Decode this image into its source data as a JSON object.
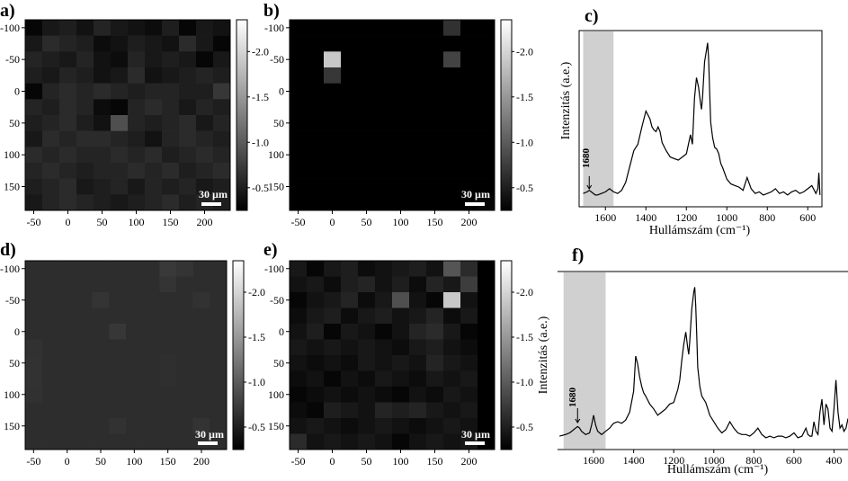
{
  "panel_labels": {
    "a": "a)",
    "b": "b)",
    "c": "c)",
    "d": "d)",
    "e": "e)",
    "f": "f)"
  },
  "scale_bar_label": "30 µm",
  "colorbar_ticks": [
    "2.0",
    "1.5",
    "1.0",
    "0.5"
  ],
  "map_x_ticks": [
    "-50",
    "0",
    "50",
    "100",
    "150",
    "200"
  ],
  "map_y_ticks": [
    "-100",
    "-50",
    "0",
    "50",
    "100",
    "150"
  ],
  "chart_data": [
    {
      "type": "heatmap",
      "panel": "a",
      "x": [
        -50,
        -25,
        0,
        25,
        50,
        75,
        100,
        125,
        150,
        175,
        200,
        225
      ],
      "y": [
        -100,
        -75,
        -50,
        -25,
        0,
        25,
        50,
        75,
        100,
        125,
        150,
        175
      ],
      "colorbar_range": [
        0.25,
        2.35
      ],
      "values": [
        [
          0.3,
          0.45,
          0.5,
          0.4,
          0.55,
          0.45,
          0.4,
          0.35,
          0.5,
          0.3,
          0.45,
          0.4
        ],
        [
          0.45,
          0.6,
          0.55,
          0.5,
          0.35,
          0.4,
          0.5,
          0.45,
          0.4,
          0.6,
          0.45,
          0.3
        ],
        [
          0.55,
          0.5,
          0.45,
          0.55,
          0.4,
          0.35,
          0.55,
          0.45,
          0.5,
          0.45,
          0.3,
          0.45
        ],
        [
          0.5,
          0.45,
          0.55,
          0.5,
          0.4,
          0.45,
          0.6,
          0.4,
          0.45,
          0.5,
          0.55,
          0.5
        ],
        [
          0.3,
          0.55,
          0.6,
          0.55,
          0.6,
          0.55,
          0.5,
          0.55,
          0.55,
          0.5,
          0.5,
          0.7
        ],
        [
          0.55,
          0.5,
          0.6,
          0.55,
          0.35,
          0.3,
          0.55,
          0.6,
          0.55,
          0.45,
          0.55,
          0.5
        ],
        [
          0.5,
          0.55,
          0.6,
          0.5,
          0.4,
          0.9,
          0.55,
          0.5,
          0.55,
          0.6,
          0.45,
          0.55
        ],
        [
          0.45,
          0.6,
          0.55,
          0.6,
          0.6,
          0.55,
          0.5,
          0.4,
          0.55,
          0.6,
          0.55,
          0.5
        ],
        [
          0.6,
          0.55,
          0.6,
          0.55,
          0.55,
          0.6,
          0.55,
          0.6,
          0.5,
          0.55,
          0.6,
          0.55
        ],
        [
          0.55,
          0.6,
          0.55,
          0.5,
          0.55,
          0.55,
          0.6,
          0.55,
          0.6,
          0.5,
          0.55,
          0.6
        ],
        [
          0.5,
          0.55,
          0.6,
          0.45,
          0.5,
          0.55,
          0.45,
          0.55,
          0.5,
          0.55,
          0.45,
          0.5
        ],
        [
          0.45,
          0.55,
          0.6,
          0.55,
          0.5,
          0.45,
          0.5,
          0.55,
          0.6,
          0.5,
          0.55,
          0.5
        ]
      ]
    },
    {
      "type": "heatmap",
      "panel": "b",
      "x": [
        -50,
        -25,
        0,
        25,
        50,
        75,
        100,
        125,
        150,
        175,
        200,
        225
      ],
      "y": [
        -100,
        -75,
        -50,
        -25,
        0,
        25,
        50,
        75,
        100,
        125,
        150,
        175
      ],
      "colorbar_range": [
        0.25,
        2.35
      ],
      "values": [
        [
          0.25,
          0.25,
          0.25,
          0.25,
          0.25,
          0.25,
          0.25,
          0.25,
          0.25,
          0.65,
          0.25,
          0.25
        ],
        [
          0.25,
          0.25,
          0.25,
          0.25,
          0.25,
          0.25,
          0.25,
          0.25,
          0.25,
          0.25,
          0.25,
          0.25
        ],
        [
          0.25,
          0.25,
          1.9,
          0.25,
          0.25,
          0.25,
          0.25,
          0.25,
          0.25,
          0.8,
          0.25,
          0.25
        ],
        [
          0.25,
          0.25,
          0.7,
          0.25,
          0.25,
          0.25,
          0.25,
          0.25,
          0.25,
          0.25,
          0.25,
          0.25
        ],
        [
          0.25,
          0.25,
          0.25,
          0.25,
          0.25,
          0.25,
          0.25,
          0.25,
          0.25,
          0.25,
          0.25,
          0.25
        ],
        [
          0.25,
          0.25,
          0.25,
          0.25,
          0.25,
          0.25,
          0.25,
          0.25,
          0.25,
          0.25,
          0.25,
          0.25
        ],
        [
          0.25,
          0.25,
          0.25,
          0.25,
          0.25,
          0.25,
          0.25,
          0.25,
          0.25,
          0.25,
          0.25,
          0.25
        ],
        [
          0.25,
          0.25,
          0.25,
          0.25,
          0.25,
          0.25,
          0.25,
          0.25,
          0.25,
          0.25,
          0.25,
          0.25
        ],
        [
          0.25,
          0.25,
          0.25,
          0.25,
          0.25,
          0.25,
          0.25,
          0.25,
          0.25,
          0.25,
          0.25,
          0.25
        ],
        [
          0.25,
          0.25,
          0.25,
          0.25,
          0.25,
          0.25,
          0.25,
          0.25,
          0.25,
          0.25,
          0.25,
          0.25
        ],
        [
          0.25,
          0.25,
          0.25,
          0.25,
          0.25,
          0.25,
          0.25,
          0.25,
          0.25,
          0.25,
          0.25,
          0.25
        ],
        [
          0.25,
          0.25,
          0.25,
          0.25,
          0.25,
          0.25,
          0.25,
          0.25,
          0.25,
          0.25,
          0.25,
          0.3
        ]
      ]
    },
    {
      "type": "line",
      "panel": "c",
      "xlabel": "Hullámszám (cm⁻¹)",
      "ylabel": "Intenzitás (a.e.)",
      "xlim": [
        1730,
        530
      ],
      "ylim": [
        0,
        1
      ],
      "x_ticks": [
        1600,
        1400,
        1200,
        1000,
        800,
        600
      ],
      "shaded_region": [
        1710,
        1560
      ],
      "annotation": {
        "text": "1680",
        "x": 1680
      },
      "x": [
        1710,
        1690,
        1680,
        1670,
        1650,
        1640,
        1620,
        1600,
        1580,
        1560,
        1540,
        1520,
        1500,
        1480,
        1460,
        1440,
        1420,
        1400,
        1380,
        1370,
        1360,
        1350,
        1340,
        1330,
        1320,
        1300,
        1280,
        1260,
        1240,
        1220,
        1200,
        1180,
        1170,
        1160,
        1150,
        1140,
        1130,
        1125,
        1120,
        1110,
        1100,
        1095,
        1090,
        1085,
        1080,
        1070,
        1060,
        1050,
        1040,
        1030,
        1020,
        1000,
        980,
        960,
        940,
        920,
        900,
        880,
        860,
        840,
        820,
        800,
        780,
        760,
        740,
        720,
        700,
        680,
        660,
        640,
        620,
        600,
        580,
        560,
        550,
        545,
        540
      ],
      "y": [
        0.05,
        0.06,
        0.07,
        0.06,
        0.04,
        0.04,
        0.05,
        0.06,
        0.08,
        0.06,
        0.05,
        0.07,
        0.12,
        0.22,
        0.32,
        0.36,
        0.47,
        0.57,
        0.52,
        0.47,
        0.45,
        0.44,
        0.47,
        0.44,
        0.37,
        0.32,
        0.28,
        0.27,
        0.26,
        0.28,
        0.3,
        0.42,
        0.36,
        0.65,
        0.78,
        0.72,
        0.62,
        0.58,
        0.66,
        0.88,
        0.96,
        1.0,
        0.9,
        0.7,
        0.5,
        0.4,
        0.34,
        0.33,
        0.3,
        0.24,
        0.21,
        0.14,
        0.11,
        0.1,
        0.09,
        0.07,
        0.15,
        0.08,
        0.05,
        0.06,
        0.04,
        0.05,
        0.06,
        0.08,
        0.05,
        0.06,
        0.04,
        0.06,
        0.07,
        0.05,
        0.06,
        0.08,
        0.1,
        0.05,
        0.08,
        0.18,
        0.04
      ]
    },
    {
      "type": "heatmap",
      "panel": "d",
      "x": [
        -50,
        -25,
        0,
        25,
        50,
        75,
        100,
        125,
        150,
        175,
        200,
        225
      ],
      "y": [
        -100,
        -75,
        -50,
        -25,
        0,
        25,
        50,
        75,
        100,
        125,
        150,
        175
      ],
      "colorbar_range": [
        0.25,
        2.35
      ],
      "values": [
        [
          0.62,
          0.62,
          0.62,
          0.62,
          0.62,
          0.62,
          0.62,
          0.62,
          0.72,
          0.68,
          0.62,
          0.62
        ],
        [
          0.62,
          0.62,
          0.62,
          0.62,
          0.62,
          0.62,
          0.62,
          0.62,
          0.68,
          0.62,
          0.62,
          0.62
        ],
        [
          0.62,
          0.62,
          0.62,
          0.62,
          0.68,
          0.62,
          0.62,
          0.62,
          0.62,
          0.62,
          0.66,
          0.62
        ],
        [
          0.62,
          0.62,
          0.62,
          0.62,
          0.62,
          0.62,
          0.62,
          0.62,
          0.62,
          0.62,
          0.62,
          0.62
        ],
        [
          0.62,
          0.62,
          0.62,
          0.62,
          0.62,
          0.7,
          0.62,
          0.62,
          0.62,
          0.62,
          0.62,
          0.62
        ],
        [
          0.65,
          0.62,
          0.62,
          0.62,
          0.62,
          0.62,
          0.62,
          0.62,
          0.62,
          0.62,
          0.62,
          0.62
        ],
        [
          0.66,
          0.62,
          0.62,
          0.62,
          0.62,
          0.62,
          0.62,
          0.62,
          0.64,
          0.62,
          0.62,
          0.62
        ],
        [
          0.66,
          0.62,
          0.62,
          0.62,
          0.62,
          0.62,
          0.62,
          0.62,
          0.64,
          0.62,
          0.62,
          0.62
        ],
        [
          0.65,
          0.62,
          0.62,
          0.62,
          0.62,
          0.62,
          0.62,
          0.62,
          0.62,
          0.62,
          0.62,
          0.62
        ],
        [
          0.62,
          0.62,
          0.62,
          0.62,
          0.62,
          0.62,
          0.62,
          0.62,
          0.62,
          0.62,
          0.62,
          0.62
        ],
        [
          0.62,
          0.62,
          0.62,
          0.62,
          0.62,
          0.66,
          0.62,
          0.62,
          0.62,
          0.62,
          0.67,
          0.62
        ],
        [
          0.62,
          0.62,
          0.62,
          0.62,
          0.62,
          0.62,
          0.62,
          0.62,
          0.62,
          0.62,
          0.62,
          0.62
        ]
      ]
    },
    {
      "type": "heatmap",
      "panel": "e",
      "x": [
        -50,
        -25,
        0,
        25,
        50,
        75,
        100,
        125,
        150,
        175,
        200,
        225
      ],
      "y": [
        -100,
        -75,
        -50,
        -25,
        0,
        25,
        50,
        75,
        100,
        125,
        150,
        175
      ],
      "colorbar_range": [
        0.25,
        2.35
      ],
      "values": [
        [
          0.45,
          0.3,
          0.45,
          0.5,
          0.35,
          0.4,
          0.45,
          0.5,
          0.4,
          0.95,
          0.6,
          0.25
        ],
        [
          0.4,
          0.45,
          0.35,
          0.5,
          0.55,
          0.4,
          0.5,
          0.35,
          0.55,
          0.45,
          0.75,
          0.25
        ],
        [
          0.3,
          0.4,
          0.45,
          0.55,
          0.35,
          0.45,
          0.9,
          0.4,
          0.3,
          1.9,
          0.4,
          0.25
        ],
        [
          0.35,
          0.45,
          0.5,
          0.35,
          0.45,
          0.5,
          0.4,
          0.45,
          0.55,
          0.35,
          0.45,
          0.25
        ],
        [
          0.4,
          0.5,
          0.3,
          0.45,
          0.4,
          0.3,
          0.4,
          0.55,
          0.6,
          0.45,
          0.3,
          0.25
        ],
        [
          0.45,
          0.4,
          0.45,
          0.4,
          0.45,
          0.4,
          0.35,
          0.45,
          0.5,
          0.4,
          0.35,
          0.25
        ],
        [
          0.4,
          0.35,
          0.4,
          0.35,
          0.45,
          0.4,
          0.45,
          0.4,
          0.55,
          0.45,
          0.4,
          0.25
        ],
        [
          0.35,
          0.4,
          0.3,
          0.4,
          0.35,
          0.45,
          0.4,
          0.35,
          0.45,
          0.4,
          0.45,
          0.25
        ],
        [
          0.3,
          0.35,
          0.4,
          0.35,
          0.4,
          0.35,
          0.3,
          0.4,
          0.35,
          0.45,
          0.4,
          0.25
        ],
        [
          0.35,
          0.3,
          0.5,
          0.45,
          0.4,
          0.55,
          0.5,
          0.55,
          0.45,
          0.4,
          0.45,
          0.25
        ],
        [
          0.4,
          0.45,
          0.4,
          0.35,
          0.4,
          0.45,
          0.4,
          0.35,
          0.4,
          0.45,
          0.4,
          0.25
        ],
        [
          0.6,
          0.4,
          0.45,
          0.4,
          0.45,
          0.4,
          0.3,
          0.4,
          0.45,
          0.4,
          0.45,
          0.25
        ]
      ]
    },
    {
      "type": "line",
      "panel": "f",
      "xlabel": "Hullámszám (cm⁻¹)",
      "ylabel": "Intenzitás (a.e.)",
      "xlim": [
        1780,
        330
      ],
      "ylim": [
        0,
        1
      ],
      "x_ticks": [
        1600,
        1400,
        1200,
        1000,
        800,
        600,
        400
      ],
      "shaded_region": [
        1750,
        1540
      ],
      "annotation": {
        "text": "1680",
        "x": 1680
      },
      "x": [
        1770,
        1740,
        1720,
        1700,
        1690,
        1680,
        1670,
        1660,
        1640,
        1620,
        1610,
        1600,
        1590,
        1580,
        1570,
        1560,
        1540,
        1520,
        1500,
        1480,
        1460,
        1440,
        1420,
        1400,
        1390,
        1380,
        1370,
        1360,
        1350,
        1340,
        1320,
        1300,
        1280,
        1260,
        1240,
        1220,
        1200,
        1180,
        1170,
        1160,
        1150,
        1140,
        1130,
        1125,
        1120,
        1110,
        1100,
        1095,
        1090,
        1085,
        1080,
        1070,
        1060,
        1050,
        1040,
        1030,
        1020,
        1000,
        980,
        960,
        940,
        920,
        900,
        880,
        860,
        840,
        820,
        800,
        780,
        760,
        740,
        720,
        700,
        680,
        660,
        640,
        620,
        600,
        580,
        560,
        540,
        530,
        520,
        510,
        500,
        490,
        480,
        470,
        460,
        450,
        440,
        430,
        420,
        410,
        400,
        390,
        380,
        370,
        360,
        350,
        340,
        330
      ],
      "y": [
        0.05,
        0.06,
        0.07,
        0.09,
        0.1,
        0.11,
        0.1,
        0.08,
        0.06,
        0.07,
        0.12,
        0.18,
        0.12,
        0.08,
        0.07,
        0.06,
        0.08,
        0.1,
        0.13,
        0.14,
        0.13,
        0.15,
        0.2,
        0.33,
        0.55,
        0.5,
        0.42,
        0.36,
        0.32,
        0.3,
        0.25,
        0.22,
        0.18,
        0.2,
        0.22,
        0.25,
        0.26,
        0.34,
        0.4,
        0.52,
        0.62,
        0.7,
        0.6,
        0.56,
        0.64,
        0.84,
        0.95,
        0.98,
        0.86,
        0.68,
        0.48,
        0.36,
        0.3,
        0.28,
        0.26,
        0.22,
        0.18,
        0.14,
        0.1,
        0.07,
        0.09,
        0.14,
        0.1,
        0.07,
        0.06,
        0.06,
        0.05,
        0.07,
        0.1,
        0.06,
        0.04,
        0.05,
        0.04,
        0.05,
        0.05,
        0.04,
        0.05,
        0.07,
        0.04,
        0.05,
        0.1,
        0.06,
        0.05,
        0.05,
        0.14,
        0.08,
        0.06,
        0.2,
        0.28,
        0.12,
        0.25,
        0.22,
        0.1,
        0.08,
        0.22,
        0.4,
        0.2,
        0.1,
        0.12,
        0.08,
        0.1,
        0.16
      ]
    }
  ]
}
